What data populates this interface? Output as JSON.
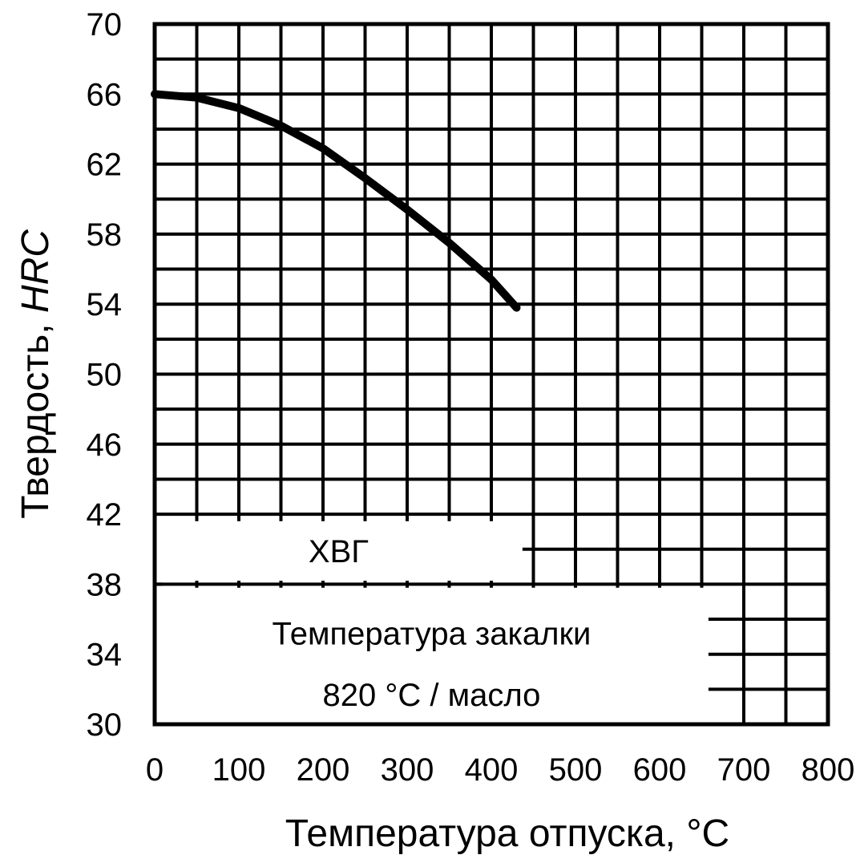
{
  "chart_data": {
    "type": "line",
    "xlabel": "Температура отпуска, °C",
    "ylabel_prefix": "Твердость, ",
    "ylabel_italic": "HRC",
    "xlim": [
      0,
      800
    ],
    "ylim": [
      30,
      70
    ],
    "x_ticks": [
      "0",
      "100",
      "200",
      "300",
      "400",
      "500",
      "600",
      "700",
      "800"
    ],
    "y_ticks": [
      "30",
      "34",
      "38",
      "42",
      "46",
      "50",
      "54",
      "58",
      "62",
      "66",
      "70"
    ],
    "grid": true,
    "series": [
      {
        "x": [
          0,
          50,
          100,
          150,
          200,
          250,
          300,
          350,
          400,
          430
        ],
        "y": [
          66,
          65.8,
          65.2,
          64.2,
          62.9,
          61.2,
          59.4,
          57.5,
          55.4,
          53.8
        ]
      }
    ],
    "annotations": {
      "steel_grade": "ХВГ",
      "quench_line1": "Температура закалки",
      "quench_line2": "820 °C / масло"
    }
  }
}
